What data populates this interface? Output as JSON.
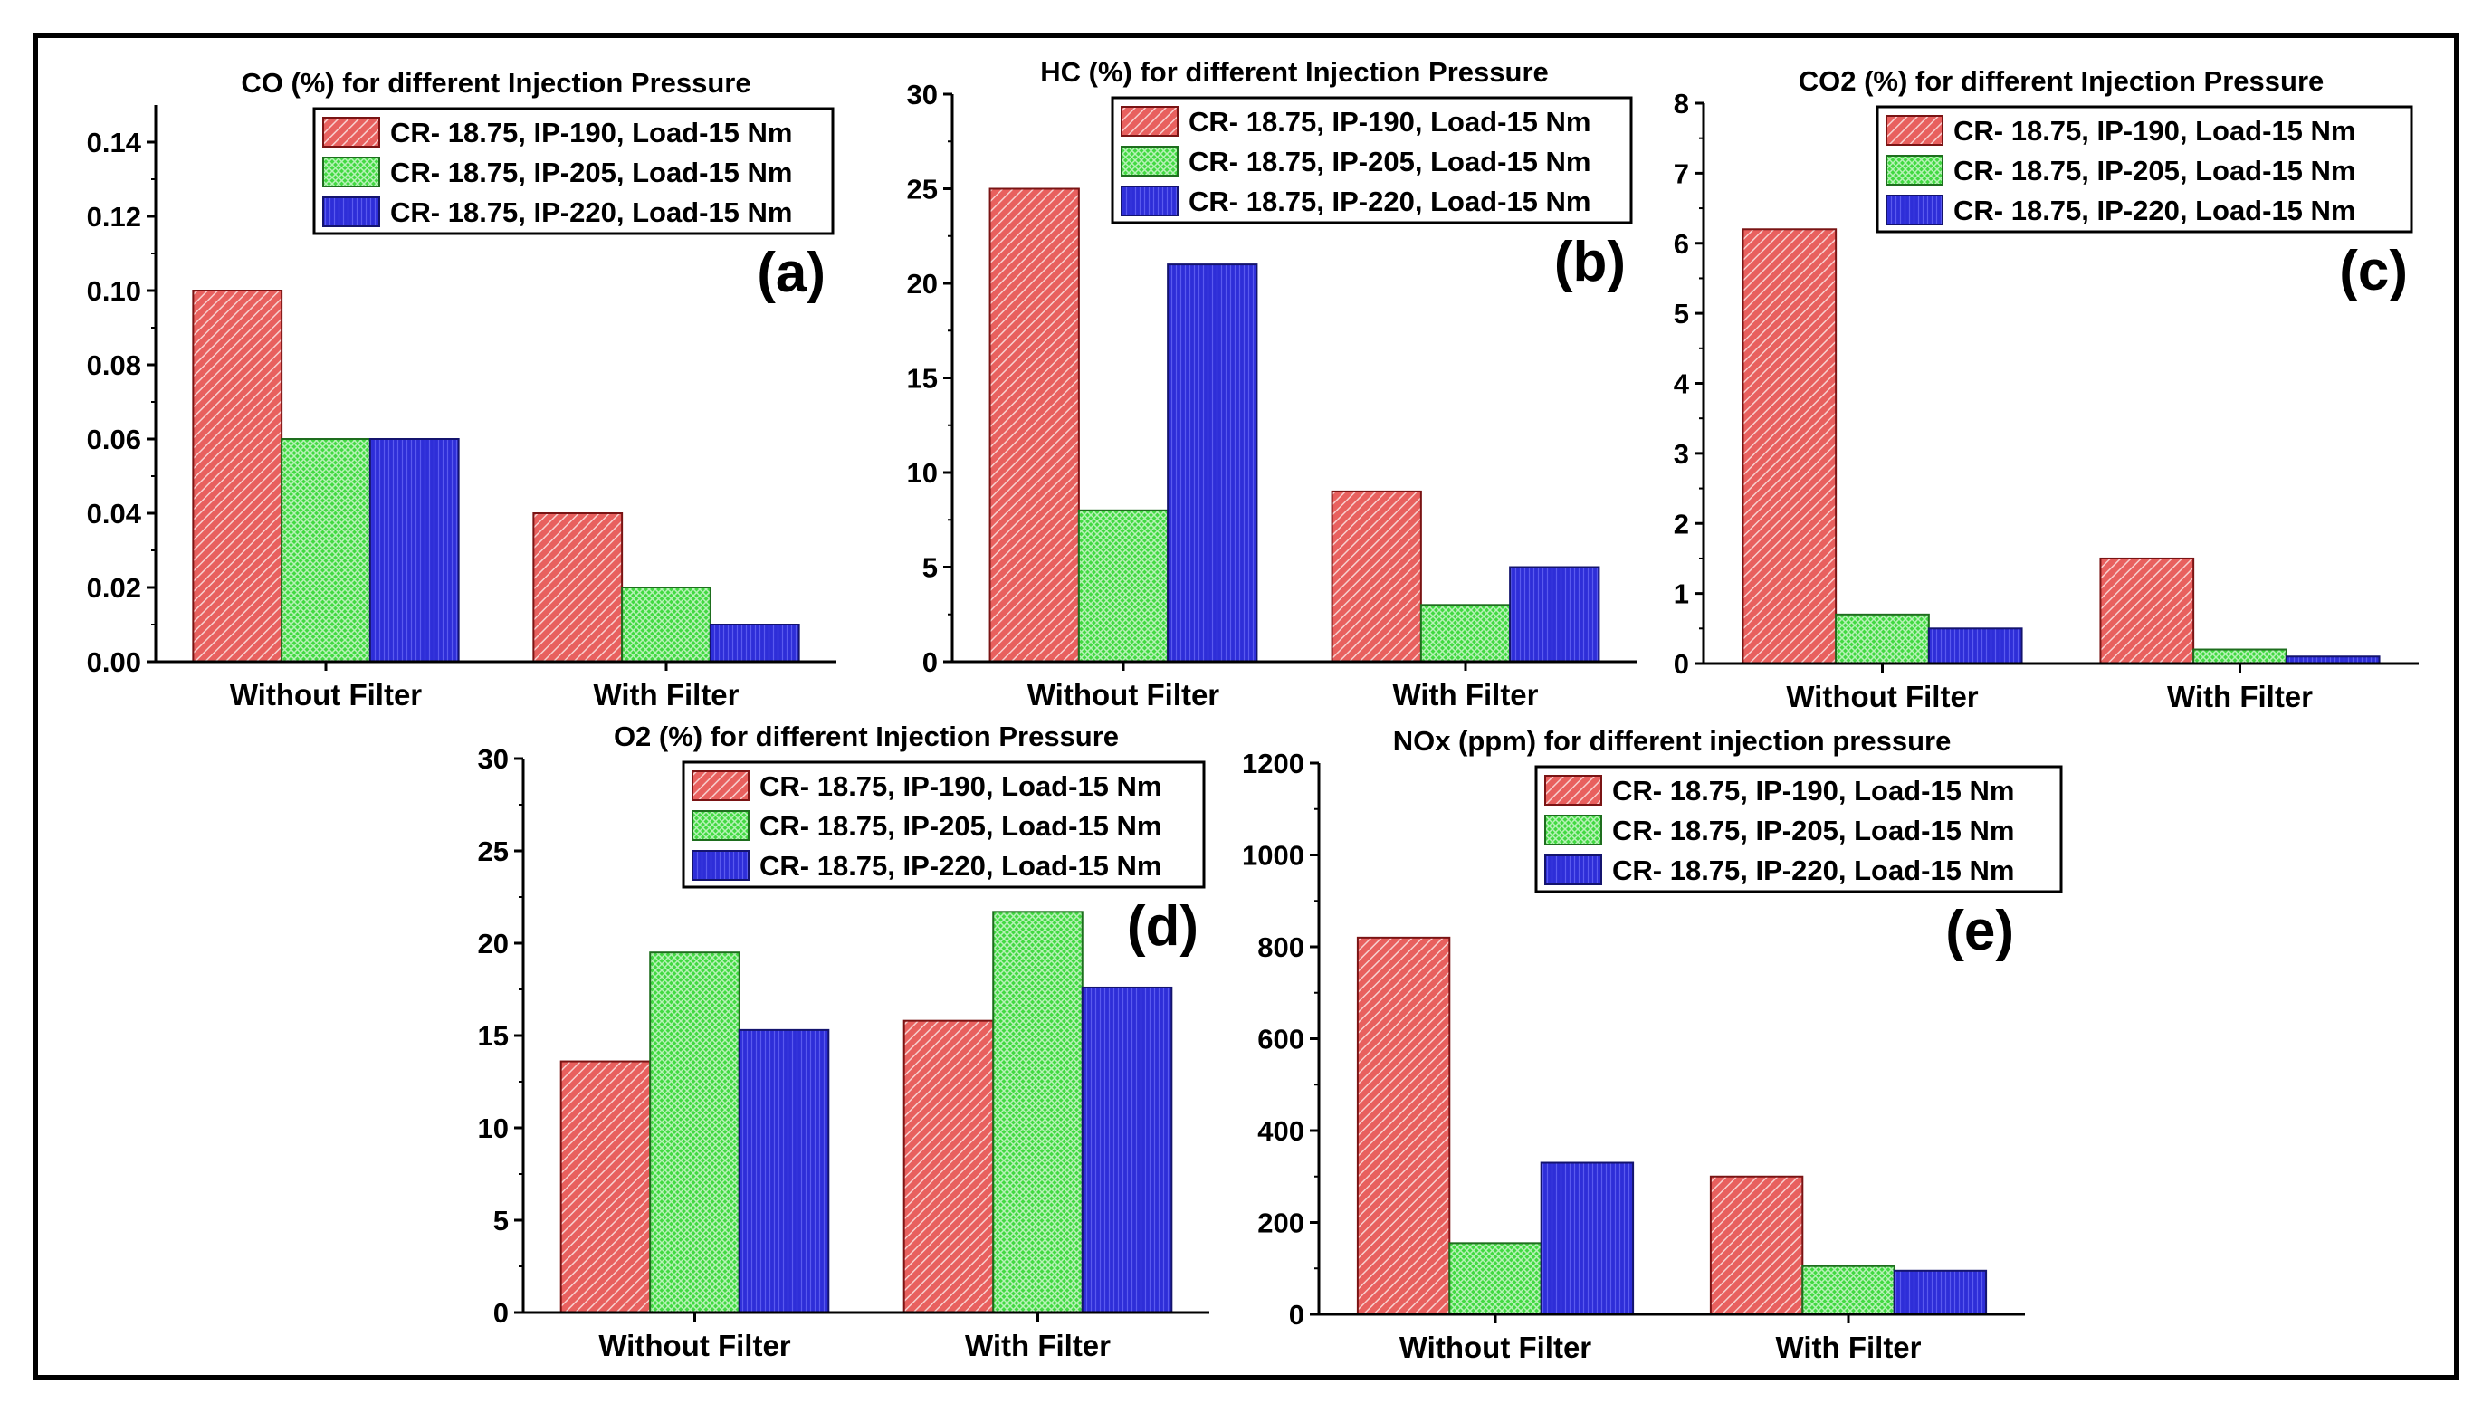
{
  "figure": {
    "colors": {
      "IP-190": "#e0302e",
      "IP-205": "#3bd83b",
      "IP-220": "#2c2cd8"
    },
    "series_names": [
      "CR- 18.75, IP-190, Load-15 Nm",
      "CR- 18.75, IP-205, Load-15 Nm",
      "CR- 18.75, IP-220, Load-15 Nm"
    ]
  },
  "chart_data": [
    {
      "id": "a",
      "panel_label": "(a)",
      "type": "bar",
      "title": "CO (%) for different Injection Pressure",
      "categories": [
        "Without Filter",
        "With Filter"
      ],
      "ylim": [
        0,
        0.15
      ],
      "yticks": [
        "0.00",
        "0.02",
        "0.04",
        "0.06",
        "0.08",
        "0.10",
        "0.12",
        "0.14"
      ],
      "series": [
        {
          "name": "CR- 18.75, IP-190, Load-15 Nm",
          "values": [
            0.1,
            0.04
          ]
        },
        {
          "name": "CR- 18.75, IP-205, Load-15 Nm",
          "values": [
            0.06,
            0.02
          ]
        },
        {
          "name": "CR- 18.75, IP-220, Load-15 Nm",
          "values": [
            0.06,
            0.01
          ]
        }
      ]
    },
    {
      "id": "b",
      "panel_label": "(b)",
      "type": "bar",
      "title": "HC (%) for different Injection Pressure",
      "categories": [
        "Without Filter",
        "With Filter"
      ],
      "ylim": [
        0,
        30
      ],
      "yticks": [
        "0",
        "5",
        "10",
        "15",
        "20",
        "25",
        "30"
      ],
      "series": [
        {
          "name": "CR- 18.75, IP-190, Load-15 Nm",
          "values": [
            25,
            9
          ]
        },
        {
          "name": "CR- 18.75, IP-205, Load-15 Nm",
          "values": [
            8,
            3
          ]
        },
        {
          "name": "CR- 18.75, IP-220, Load-15 Nm",
          "values": [
            21,
            5
          ]
        }
      ]
    },
    {
      "id": "c",
      "panel_label": "(c)",
      "type": "bar",
      "title": "CO2 (%) for different Injection Pressure",
      "categories": [
        "Without Filter",
        "With Filter"
      ],
      "ylim": [
        0,
        8
      ],
      "yticks": [
        "0",
        "1",
        "2",
        "3",
        "4",
        "5",
        "6",
        "7",
        "8"
      ],
      "series": [
        {
          "name": "CR- 18.75, IP-190, Load-15 Nm",
          "values": [
            6.2,
            1.5
          ]
        },
        {
          "name": "CR- 18.75, IP-205, Load-15 Nm",
          "values": [
            0.7,
            0.2
          ]
        },
        {
          "name": "CR- 18.75, IP-220, Load-15 Nm",
          "values": [
            0.5,
            0.1
          ]
        }
      ]
    },
    {
      "id": "d",
      "panel_label": "(d)",
      "type": "bar",
      "title": "O2 (%) for different Injection Pressure",
      "categories": [
        "Without Filter",
        "With Filter"
      ],
      "ylim": [
        0,
        30
      ],
      "yticks": [
        "0",
        "5",
        "10",
        "15",
        "20",
        "25",
        "30"
      ],
      "series": [
        {
          "name": "CR- 18.75, IP-190, Load-15 Nm",
          "values": [
            13.6,
            15.8
          ]
        },
        {
          "name": "CR- 18.75, IP-205, Load-15 Nm",
          "values": [
            19.5,
            21.7
          ]
        },
        {
          "name": "CR- 18.75, IP-220, Load-15 Nm",
          "values": [
            15.3,
            17.6
          ]
        }
      ]
    },
    {
      "id": "e",
      "panel_label": "(e)",
      "type": "bar",
      "title": "NOx (ppm) for different injection pressure",
      "categories": [
        "Without Filter",
        "With Filter"
      ],
      "ylim": [
        0,
        1200
      ],
      "yticks": [
        "0",
        "200",
        "400",
        "600",
        "800",
        "1000",
        "1200"
      ],
      "series": [
        {
          "name": "CR- 18.75, IP-190, Load-15 Nm",
          "values": [
            820,
            300
          ]
        },
        {
          "name": "CR- 18.75, IP-205, Load-15 Nm",
          "values": [
            155,
            105
          ]
        },
        {
          "name": "CR- 18.75, IP-220, Load-15 Nm",
          "values": [
            330,
            95
          ]
        }
      ]
    }
  ]
}
